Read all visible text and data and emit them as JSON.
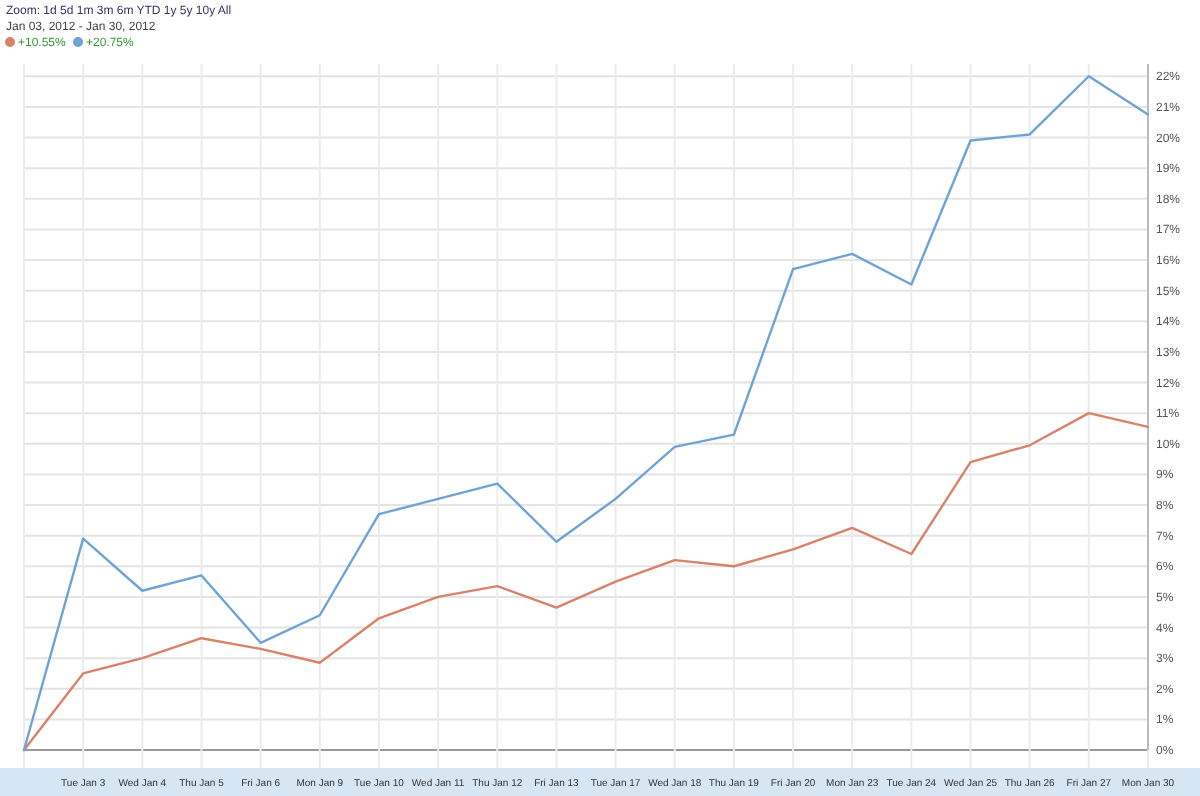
{
  "chart_data": {
    "type": "line",
    "categories": [
      null,
      "Tue Jan 3",
      "Wed Jan 4",
      "Thu Jan 5",
      "Fri Jan 6",
      "Mon Jan 9",
      "Tue Jan 10",
      "Wed Jan 11",
      "Thu Jan 12",
      "Fri Jan 13",
      "Tue Jan 17",
      "Wed Jan 18",
      "Thu Jan 19",
      "Fri Jan 20",
      "Mon Jan 23",
      "Tue Jan 24",
      "Wed Jan 25",
      "Thu Jan 26",
      "Fri Jan 27",
      "Mon Jan 30"
    ],
    "series": [
      {
        "color": "#d9826a",
        "values": [
          0,
          2.5,
          3.0,
          3.65,
          3.3,
          2.85,
          4.3,
          5.0,
          5.35,
          4.65,
          5.5,
          6.2,
          6.0,
          6.55,
          7.25,
          6.4,
          9.4,
          9.95,
          11.0,
          10.55
        ]
      },
      {
        "color": "#6fa3d6",
        "values": [
          0,
          6.9,
          5.2,
          5.7,
          3.5,
          4.4,
          7.7,
          8.2,
          8.7,
          6.8,
          8.2,
          9.9,
          10.3,
          15.7,
          16.2,
          15.2,
          19.9,
          20.1,
          22.0,
          20.75
        ]
      }
    ],
    "ylim": [
      0,
      22.4
    ],
    "yticks": [
      {
        "value": 0,
        "label": "0%"
      },
      {
        "value": 1,
        "label": "1%"
      },
      {
        "value": 2,
        "label": "2%"
      },
      {
        "value": 3,
        "label": "3%"
      },
      {
        "value": 4,
        "label": "4%"
      },
      {
        "value": 5,
        "label": "5%"
      },
      {
        "value": 6,
        "label": "6%"
      },
      {
        "value": 7,
        "label": "7%"
      },
      {
        "value": 8,
        "label": "8%"
      },
      {
        "value": 9,
        "label": "9%"
      },
      {
        "value": 10,
        "label": "10%"
      },
      {
        "value": 11,
        "label": "11%"
      },
      {
        "value": 12,
        "label": "12%"
      },
      {
        "value": 13,
        "label": "13%"
      },
      {
        "value": 14,
        "label": "14%"
      },
      {
        "value": 15,
        "label": "15%"
      },
      {
        "value": 16,
        "label": "16%"
      },
      {
        "value": 17,
        "label": "17%"
      },
      {
        "value": 18,
        "label": "18%"
      },
      {
        "value": 19,
        "label": "19%"
      },
      {
        "value": 20,
        "label": "20%"
      },
      {
        "value": 21,
        "label": "21%"
      },
      {
        "value": 22,
        "label": "22%"
      }
    ],
    "grid": true,
    "annotations": [
      "Zoom: 1d 5d 1m 3m 6m YTD 1y 5y 10y All",
      "Jan 03, 2012 - Jan 30, 2012",
      "+10.55%",
      "+20.75%"
    ]
  }
}
